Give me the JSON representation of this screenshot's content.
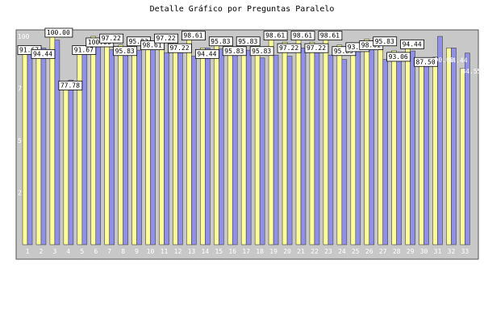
{
  "title": "Detalle Gráfico por Preguntas Paralelo",
  "chart_data": {
    "type": "bar",
    "title": "Detalle Gráfico por Preguntas Paralelo",
    "xlabel": "",
    "ylabel": "",
    "ylim": [
      0,
      100
    ],
    "yticks": [
      25,
      50,
      75,
      100
    ],
    "grid": false,
    "categories": [
      "1",
      "2",
      "3",
      "4",
      "5",
      "6",
      "7",
      "8",
      "9",
      "10",
      "11",
      "12",
      "13",
      "14",
      "15",
      "16",
      "17",
      "18",
      "19",
      "20",
      "21",
      "22",
      "23",
      "24",
      "25",
      "26",
      "27",
      "28",
      "29",
      "30",
      "31",
      "32",
      "33"
    ],
    "series": [
      {
        "color": "#ffff99",
        "values": [
          91.67,
          94.44,
          100.0,
          77.78,
          91.67,
          100.0,
          97.22,
          95.83,
          95.83,
          98.61,
          97.22,
          97.22,
          98.61,
          94.44,
          95.83,
          95.83,
          95.83,
          95.83,
          98.61,
          97.22,
          98.61,
          97.22,
          98.61,
          95.83,
          93.06,
          98.61,
          95.83,
          93.06,
          94.44,
          87.5,
          90.0,
          94.44,
          84.55
        ]
      },
      {
        "color": "#9090e8",
        "values": [
          91.67,
          94.4,
          98.18,
          79.0,
          91.67,
          97.22,
          93.53,
          93.53,
          93.35,
          95.0,
          92.17,
          95.83,
          90.5,
          94.4,
          93.9,
          93.8,
          93.35,
          89.62,
          91.0,
          90.45,
          94.4,
          93.35,
          91.0,
          88.9,
          93.45,
          96.5,
          88.88,
          91.0,
          93.0,
          86.35,
          100.0,
          94.44,
          91.96
        ]
      }
    ],
    "labels": [
      "91.67",
      "94.44",
      "100.00",
      "77.78",
      "91.67",
      "100.00",
      "97.22",
      "95.83",
      "95.83",
      "98.61",
      "97.22",
      "97.22",
      "98.61",
      "94.44",
      "95.83",
      "95.83",
      "95.83",
      "95.83",
      "98.61",
      "97.22",
      "98.61",
      "97.22",
      "98.61",
      "95.83",
      "93.06",
      "98.61",
      "95.83",
      "93.06",
      "94.44",
      "87.50",
      "90.00",
      "94.44",
      "84.55"
    ]
  }
}
